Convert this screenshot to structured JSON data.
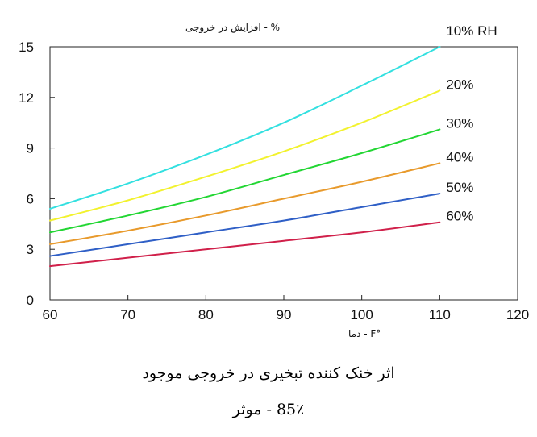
{
  "chart_data": {
    "type": "line",
    "title": "",
    "ylabel": "% - افزایش در خروجی",
    "xlabel": "°F - دما",
    "xlim": [
      60,
      120
    ],
    "ylim": [
      0,
      15
    ],
    "x_ticks": [
      60,
      70,
      80,
      90,
      100,
      110,
      120
    ],
    "y_ticks": [
      0,
      3,
      6,
      9,
      12,
      15
    ],
    "grid": false,
    "colors": {
      "axis": "#222222"
    },
    "series": [
      {
        "name": "10% RH",
        "color": "#33e0e0",
        "x": [
          60,
          70,
          80,
          90,
          100,
          110
        ],
        "y": [
          5.4,
          6.9,
          8.6,
          10.5,
          12.7,
          15.0
        ]
      },
      {
        "name": "20%",
        "color": "#f2f22e",
        "x": [
          60,
          70,
          80,
          90,
          100,
          110
        ],
        "y": [
          4.7,
          5.9,
          7.3,
          8.8,
          10.5,
          12.4
        ]
      },
      {
        "name": "30%",
        "color": "#22d633",
        "x": [
          60,
          70,
          80,
          90,
          100,
          110
        ],
        "y": [
          4.0,
          5.0,
          6.1,
          7.4,
          8.7,
          10.1
        ]
      },
      {
        "name": "40%",
        "color": "#e89a2c",
        "x": [
          60,
          70,
          80,
          90,
          100,
          110
        ],
        "y": [
          3.3,
          4.1,
          5.0,
          6.0,
          7.0,
          8.1
        ]
      },
      {
        "name": "50%",
        "color": "#2f5fc6",
        "x": [
          60,
          70,
          80,
          90,
          100,
          110
        ],
        "y": [
          2.6,
          3.3,
          4.0,
          4.7,
          5.5,
          6.3
        ]
      },
      {
        "name": "60%",
        "color": "#d0204a",
        "x": [
          60,
          70,
          80,
          90,
          100,
          110
        ],
        "y": [
          2.0,
          2.5,
          3.0,
          3.5,
          4.0,
          4.6
        ]
      }
    ]
  },
  "caption": {
    "line1": "اثر خنک کننده تبخیری در خروجی موجود",
    "line2": "85٪ - موثر"
  }
}
